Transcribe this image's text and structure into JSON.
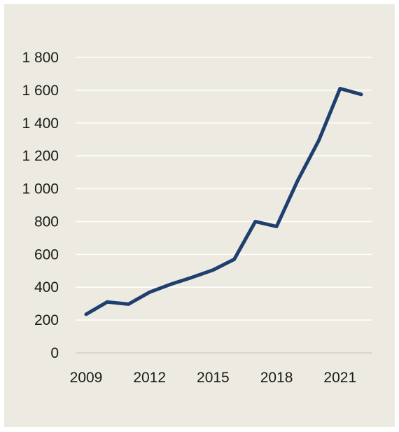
{
  "chart_data": {
    "type": "line",
    "title": "",
    "xlabel": "",
    "ylabel": "",
    "x": [
      2009,
      2010,
      2011,
      2012,
      2013,
      2014,
      2015,
      2016,
      2017,
      2018,
      2019,
      2020,
      2021,
      2022
    ],
    "series": [
      {
        "values": [
          235,
          310,
          297,
          370,
          418,
          460,
          505,
          570,
          800,
          770,
          1050,
          1295,
          1610,
          1575
        ],
        "color": "#1f3f6e"
      }
    ],
    "xticks": [
      "2009",
      "2012",
      "2015",
      "2018",
      "2021"
    ],
    "yticks": [
      "0",
      "200",
      "400",
      "600",
      "800",
      "1 000",
      "1 200",
      "1 400",
      "1 600",
      "1 800"
    ],
    "ylim": [
      0,
      1800
    ],
    "grid": "horizontal",
    "legend": "none",
    "background_color": "#edebe1",
    "gridline_color": "#ffffff",
    "axis_line_color": "#d0cec6"
  }
}
